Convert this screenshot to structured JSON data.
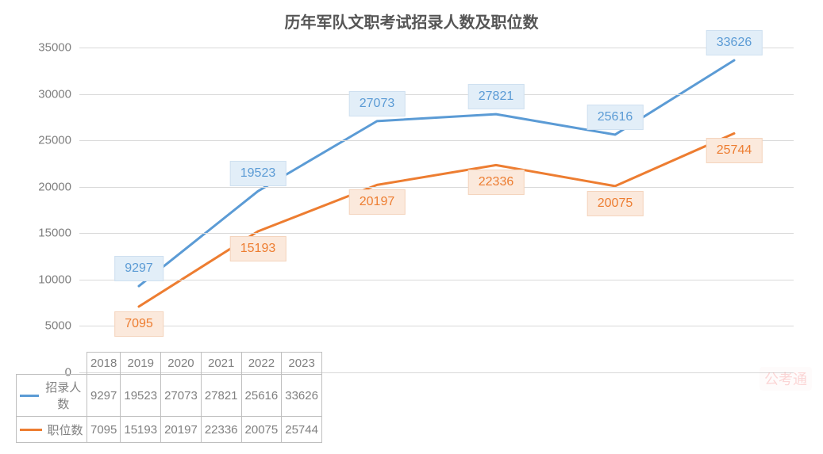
{
  "chart": {
    "type": "line",
    "title": "历年军队文职考试招录人数及职位数",
    "title_fontsize": 20,
    "title_color": "#555555",
    "background_color": "#ffffff",
    "grid_color": "#d9d9d9",
    "axis_border_color": "#bfbfbf",
    "axis_label_color": "#808080",
    "axis_label_fontsize": 15,
    "table_text_color": "#808080",
    "data_label_fontsize": 16,
    "categories": [
      "2018",
      "2019",
      "2020",
      "2021",
      "2022",
      "2023"
    ],
    "ylim": [
      0,
      35000
    ],
    "ytick_step": 5000,
    "yticks": [
      "0",
      "5000",
      "10000",
      "15000",
      "20000",
      "25000",
      "30000",
      "35000"
    ],
    "line_width": 3,
    "series": [
      {
        "name": "招录人数",
        "values": [
          9297,
          19523,
          27073,
          27821,
          25616,
          33626
        ],
        "line_color": "#5b9bd5",
        "label_bg": "#e2eef8",
        "label_border": "#cfe0f0",
        "label_text_color": "#5b9bd5"
      },
      {
        "name": "职位数",
        "values": [
          7095,
          15193,
          20197,
          22336,
          20075,
          25744
        ],
        "line_color": "#ed7d31",
        "label_bg": "#fbe9dc",
        "label_border": "#f4d4bd",
        "label_text_color": "#ed7d31"
      }
    ]
  },
  "watermark": "公考通"
}
